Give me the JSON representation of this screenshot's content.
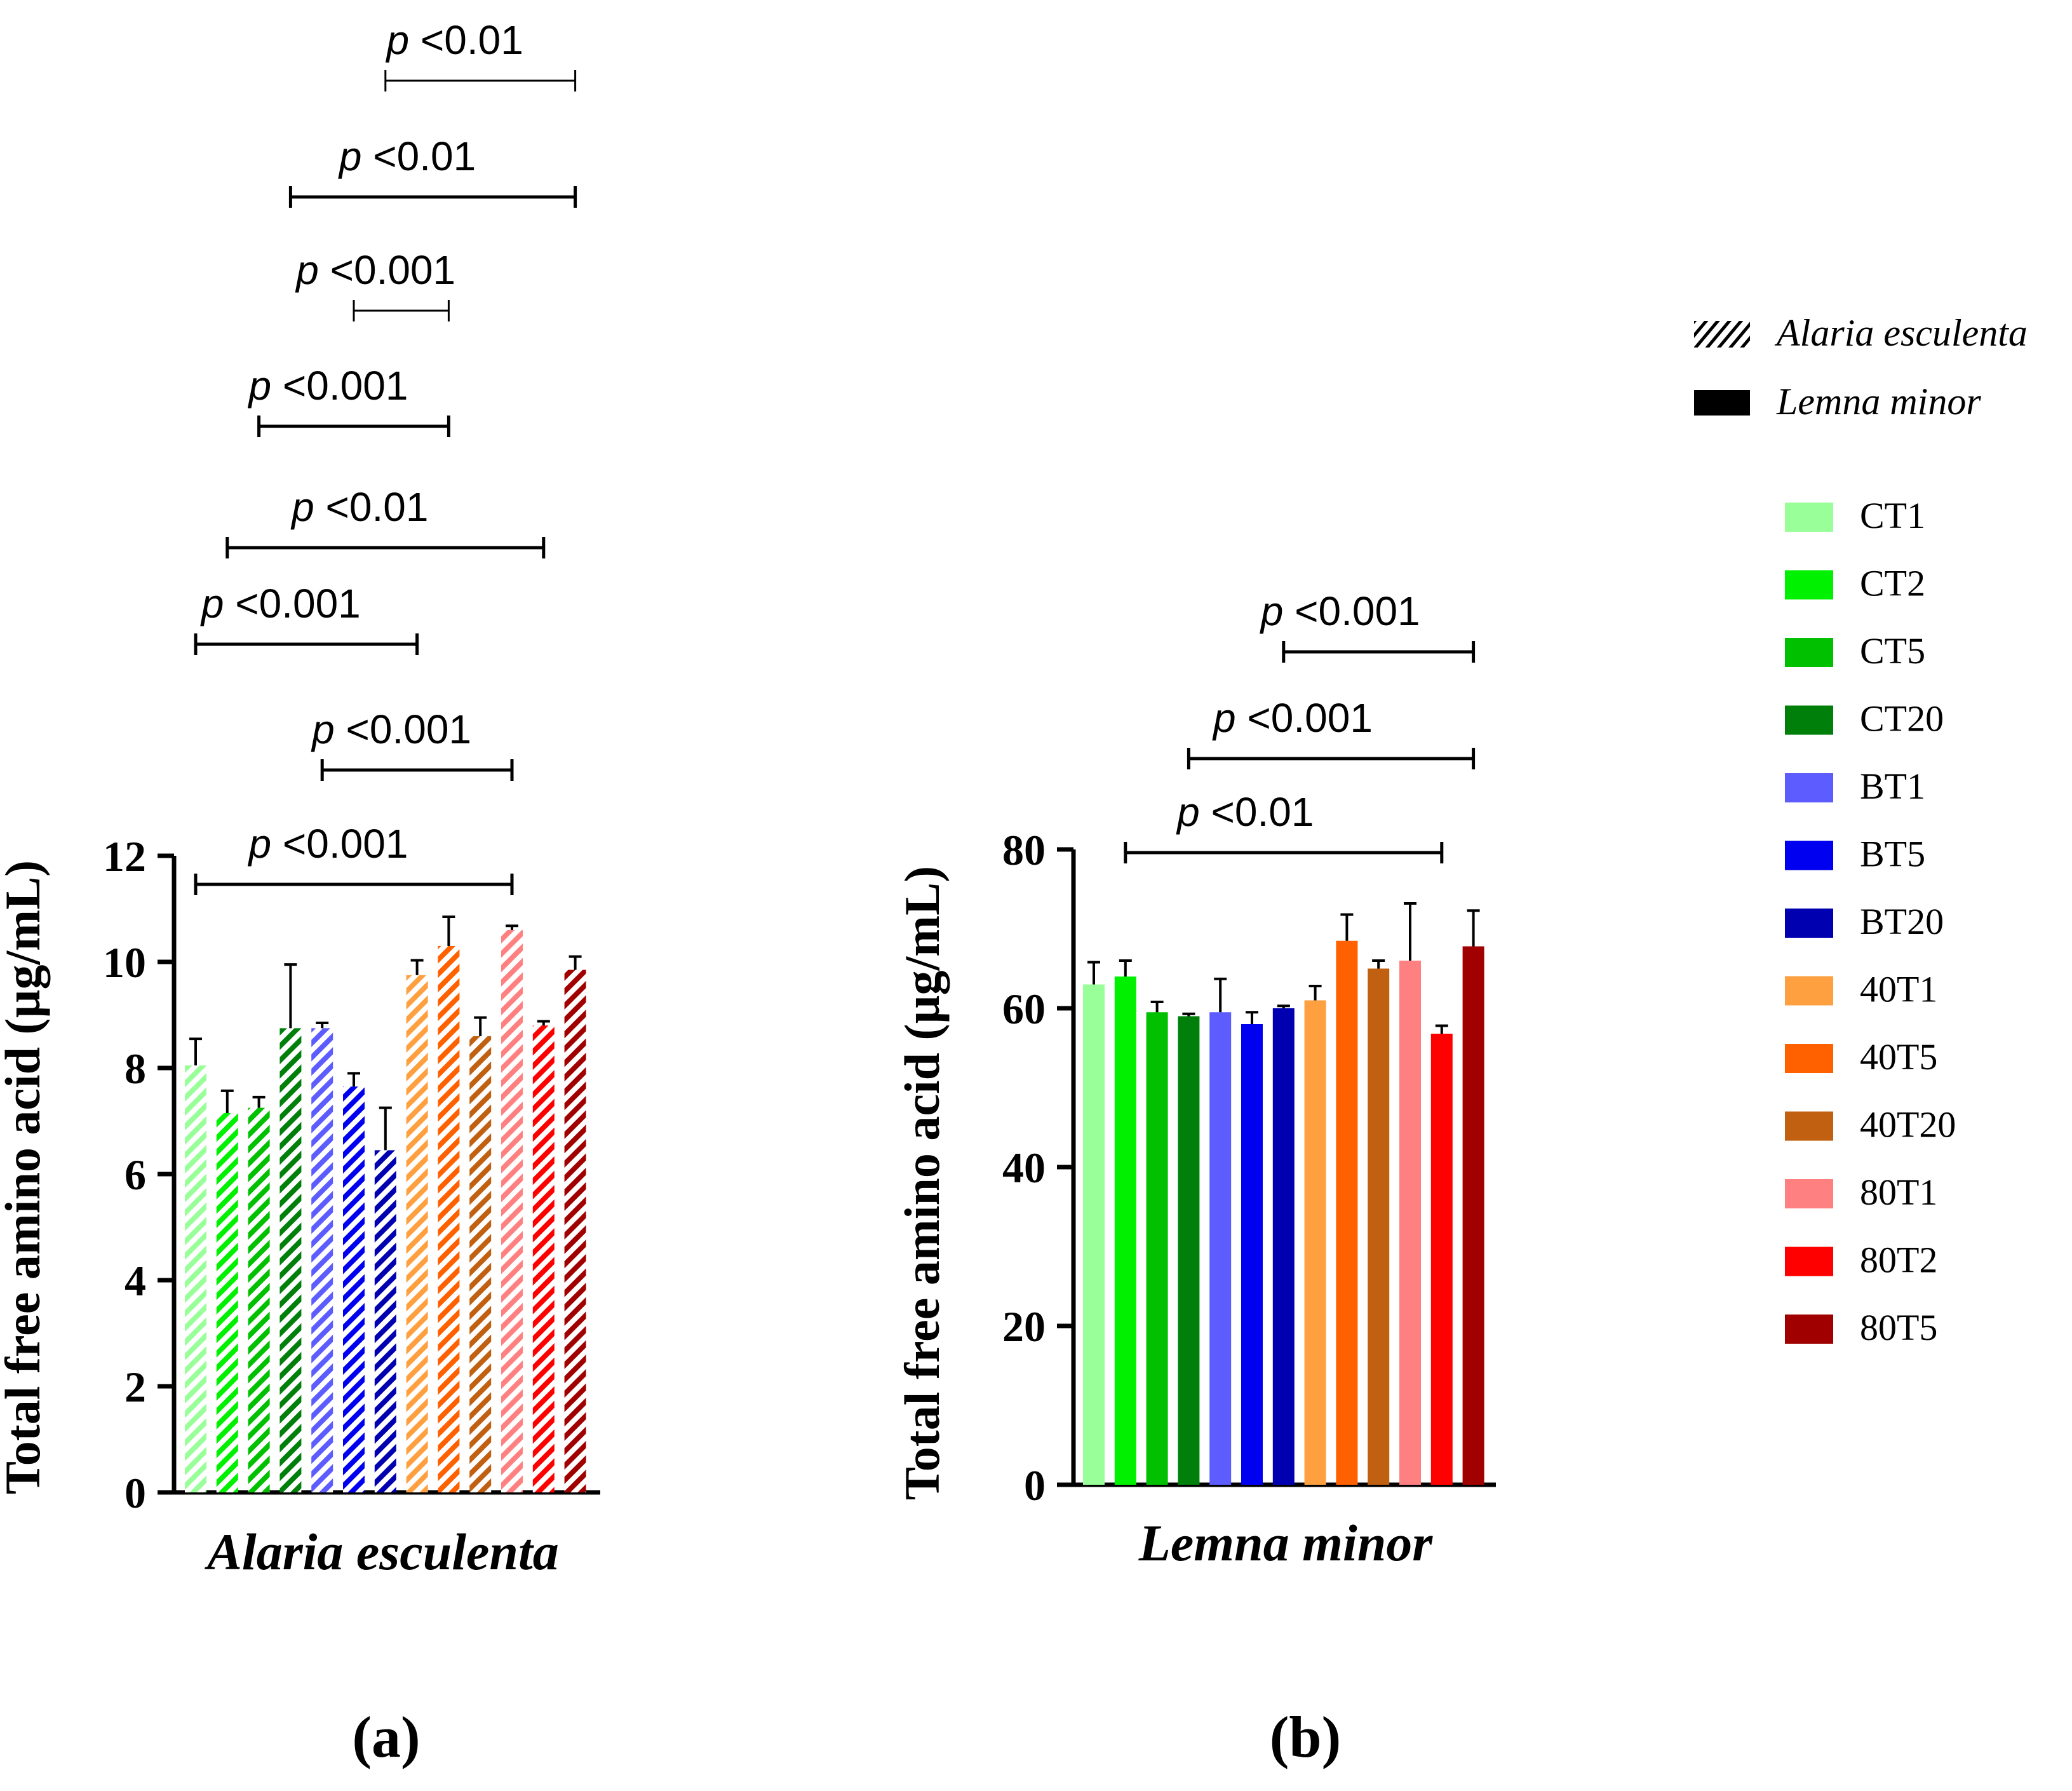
{
  "chart_data": [
    {
      "type": "bar",
      "panel": "(a)",
      "xlabel": "Alaria esculenta",
      "ylabel": "Total free amino acid (µg/mL)",
      "ylim": [
        0,
        12
      ],
      "yticks": [
        0,
        2,
        4,
        6,
        8,
        10,
        12
      ],
      "pattern": "hatched",
      "categories": [
        "CT1",
        "CT2",
        "CT5",
        "CT20",
        "BT1",
        "BT5",
        "BT20",
        "40T1",
        "40T5",
        "40T20",
        "80T1",
        "80T2",
        "80T5"
      ],
      "values": [
        8.05,
        7.15,
        7.25,
        8.75,
        8.75,
        7.65,
        6.45,
        9.75,
        10.3,
        8.6,
        10.6,
        8.8,
        9.85
      ],
      "errors": [
        0.5,
        0.42,
        0.2,
        1.2,
        0.1,
        0.25,
        0.8,
        0.28,
        0.55,
        0.35,
        0.08,
        0.08,
        0.25
      ],
      "significance": [
        {
          "from": "CT1",
          "to": "80T1",
          "label": "<0.001"
        },
        {
          "from": "BT1",
          "to": "80T1",
          "label": "<0.001"
        },
        {
          "from": "CT1",
          "to": "40T1",
          "label": "<0.001"
        },
        {
          "from": "CT2",
          "to": "80T2",
          "label": "<0.01"
        },
        {
          "from": "CT5",
          "to": "40T5",
          "label": "<0.001"
        },
        {
          "from": "BT5",
          "to": "40T5",
          "label": "<0.001"
        },
        {
          "from": "CT20",
          "to": "80T5",
          "label": "<0.01"
        },
        {
          "from": "BT20",
          "to": "80T5",
          "label": "<0.01"
        }
      ]
    },
    {
      "type": "bar",
      "panel": "(b)",
      "xlabel": "Lemna minor",
      "ylabel": "Total free amino acid (µg/mL)",
      "ylim": [
        0,
        80
      ],
      "yticks": [
        0,
        20,
        40,
        60,
        80
      ],
      "pattern": "solid",
      "categories": [
        "CT1",
        "CT2",
        "CT5",
        "CT20",
        "BT1",
        "BT5",
        "BT20",
        "40T1",
        "40T5",
        "40T20",
        "80T1",
        "80T2",
        "80T5"
      ],
      "values": [
        63,
        64,
        59.5,
        59,
        59.5,
        58,
        60,
        61,
        68.5,
        65,
        66,
        56.8,
        67.8
      ],
      "errors": [
        2.8,
        2.0,
        1.3,
        0.3,
        4.2,
        1.5,
        0.3,
        1.8,
        3.3,
        1.0,
        7.2,
        1.0,
        4.5
      ],
      "significance": [
        {
          "from": "CT2",
          "to": "80T2",
          "label": "<0.01"
        },
        {
          "from": "CT20",
          "to": "80T5",
          "label": "<0.001"
        },
        {
          "from": "BT20",
          "to": "80T5",
          "label": "<0.001"
        }
      ]
    }
  ],
  "p_symbol": "p",
  "legend": {
    "pattern_entries": [
      {
        "label": "Alaria esculenta",
        "style": "hatched"
      },
      {
        "label": "Lemna minor",
        "style": "solid"
      }
    ],
    "color_entries": [
      {
        "label": "CT1",
        "color": "#99ff99"
      },
      {
        "label": "CT2",
        "color": "#00f100"
      },
      {
        "label": "CT5",
        "color": "#00c000"
      },
      {
        "label": "CT20",
        "color": "#00800a"
      },
      {
        "label": "BT1",
        "color": "#5c5cff"
      },
      {
        "label": "BT5",
        "color": "#0000f0"
      },
      {
        "label": "BT20",
        "color": "#0000b0"
      },
      {
        "label": "40T1",
        "color": "#ffa040"
      },
      {
        "label": "40T5",
        "color": "#ff6000"
      },
      {
        "label": "40T20",
        "color": "#c06010"
      },
      {
        "label": "80T1",
        "color": "#ff8080"
      },
      {
        "label": "80T2",
        "color": "#ff0000"
      },
      {
        "label": "80T5",
        "color": "#a00000"
      }
    ]
  }
}
